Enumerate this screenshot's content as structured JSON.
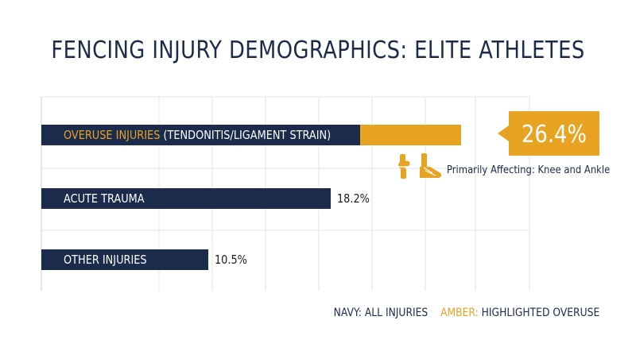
{
  "title": "FENCING INJURY DEMOGRAPHICS: ELITE ATHLETES",
  "colors": {
    "navy": "#1b2b4b",
    "amber": "#e8a323",
    "grid": "#e3e3e3"
  },
  "chart_data": {
    "type": "bar",
    "orientation": "horizontal",
    "xlim": [
      0,
      30
    ],
    "grid": true,
    "categories": [
      "OVERUSE INJURIES (TENDONITIS/LIGAMENT STRAIN)",
      "ACUTE TRAUMA",
      "OTHER INJURIES"
    ],
    "bars": [
      {
        "highlight": "OVERUSE INJURIES",
        "rest": " (TENDONITIS/LIGAMENT STRAIN)",
        "value": 26.4,
        "value_label": "26.4%",
        "highlighted": true
      },
      {
        "highlight": "",
        "rest": "ACUTE TRAUMA",
        "value": 18.2,
        "value_label": "18.2%",
        "highlighted": false
      },
      {
        "highlight": "",
        "rest": "OTHER INJURIES",
        "value": 10.5,
        "value_label": "10.5%",
        "highlighted": false
      }
    ],
    "annotation": {
      "text": "Primarily Affecting: Knee and Ankle",
      "icons": [
        "knee-joint-icon",
        "ankle-joint-icon"
      ]
    },
    "legend": [
      {
        "key": "",
        "label": "NAVY: ALL INJURIES"
      },
      {
        "key": "AMBER:",
        "label": " HIGHLIGHTED OVERUSE"
      }
    ]
  }
}
